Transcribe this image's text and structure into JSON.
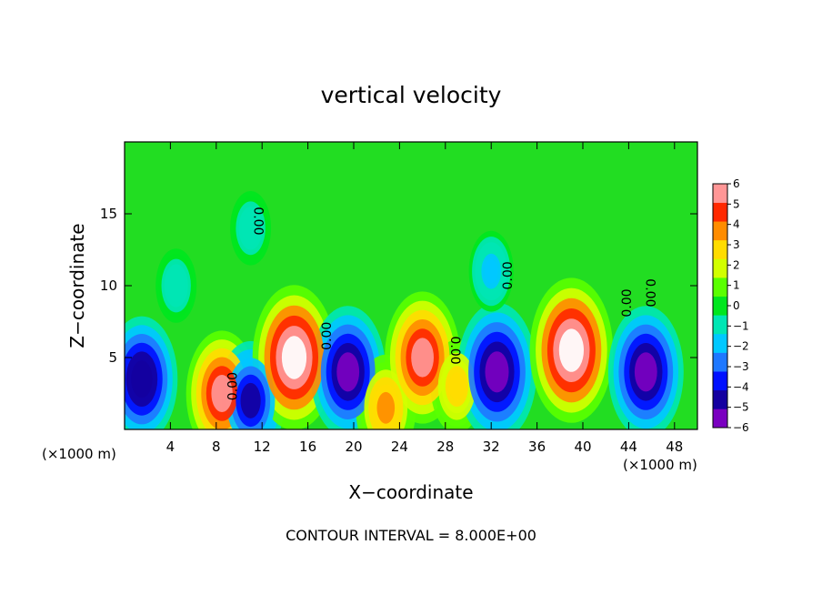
{
  "chart_data": {
    "type": "heatmap",
    "title": "vertical velocity",
    "xlabel": "X−coordinate",
    "ylabel": "Z−coordinate",
    "x_unit_left": "(×1000 m)",
    "x_unit_right": "(×1000 m)",
    "footer": "CONTOUR INTERVAL = 8.000E+00",
    "xlim": [
      0,
      50
    ],
    "ylim": [
      0,
      20
    ],
    "xticks": [
      4,
      8,
      12,
      16,
      20,
      24,
      28,
      32,
      36,
      40,
      44,
      48
    ],
    "yticks": [
      5,
      10,
      15
    ],
    "colorbar": {
      "min": -6,
      "max": 6,
      "ticks": [
        "6",
        "5",
        "4",
        "3",
        "2",
        "1",
        "0",
        "−1",
        "−2",
        "−3",
        "−4",
        "−5",
        "−6"
      ],
      "colors": [
        "#7a00c0",
        "#1400a0",
        "#0010ff",
        "#1e78ff",
        "#00c8ff",
        "#00e6b4",
        "#00e61e",
        "#5aff00",
        "#d2ff00",
        "#ffdc00",
        "#ff8c00",
        "#ff2800",
        "#ff9696"
      ]
    },
    "contour_labels": [
      "0.00",
      "0.00",
      "0.00",
      "0.00",
      "0.00",
      "0.00",
      "0.00"
    ],
    "features": [
      {
        "x": 1.5,
        "z": 3.5,
        "w": -5.5
      },
      {
        "x": 4.5,
        "z": 10.0,
        "w": -1.5
      },
      {
        "x": 8.5,
        "z": 2.5,
        "w": 5.5
      },
      {
        "x": 11.0,
        "z": 2.0,
        "w": -5.0
      },
      {
        "x": 14.8,
        "z": 5.0,
        "w": 7.0
      },
      {
        "x": 19.5,
        "z": 4.0,
        "w": -6.0
      },
      {
        "x": 22.8,
        "z": 1.5,
        "w": 4.0
      },
      {
        "x": 26.0,
        "z": 5.0,
        "w": 6.0
      },
      {
        "x": 29.0,
        "z": 3.0,
        "w": 3.0
      },
      {
        "x": 32.5,
        "z": 4.0,
        "w": -6.5
      },
      {
        "x": 39.0,
        "z": 5.5,
        "w": 7.0
      },
      {
        "x": 45.5,
        "z": 4.0,
        "w": -6.0
      },
      {
        "x": 11.0,
        "z": 14.0,
        "w": -1.5
      },
      {
        "x": 32.0,
        "z": 11.0,
        "w": -2.0
      }
    ]
  }
}
